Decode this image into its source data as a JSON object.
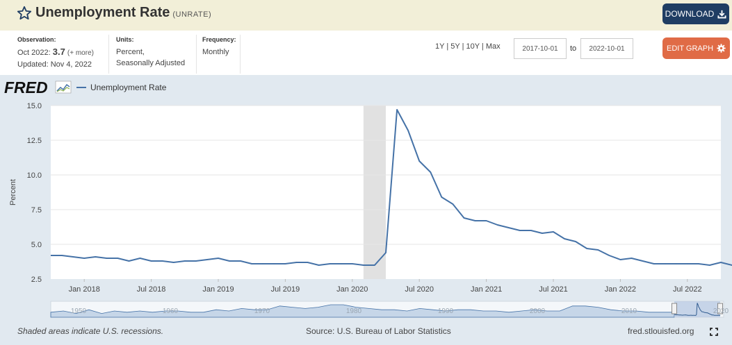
{
  "header": {
    "title": "Unemployment Rate",
    "series_id": "(UNRATE)",
    "download_label": "DOWNLOAD"
  },
  "info": {
    "observation_label": "Observation:",
    "observation_date": "Oct 2022:",
    "observation_value": "3.7",
    "observation_more": "(+ more)",
    "updated": "Updated: Nov 4, 2022",
    "units_label": "Units:",
    "units_line1": "Percent,",
    "units_line2": "Seasonally Adjusted",
    "frequency_label": "Frequency:",
    "frequency_value": "Monthly"
  },
  "range": {
    "options": [
      "1Y",
      "5Y",
      "10Y",
      "Max"
    ],
    "start": "2017-10-01",
    "to_label": "to",
    "end": "2022-10-01"
  },
  "edit_label": "EDIT GRAPH",
  "logo_text": "FRED",
  "legend_label": "Unemployment Rate",
  "footer": {
    "recession_note": "Shaded areas indicate U.S. recessions.",
    "source": "Source: U.S. Bureau of Labor Statistics",
    "url": "fred.stlouisfed.org"
  },
  "colors": {
    "line": "#4572a7",
    "download": "#1f3d63",
    "edit": "#e06b46",
    "titlebar": "#f2efd8",
    "plot_bg": "#e1e9f0"
  },
  "icons": {
    "star": "star-outline-icon",
    "download": "download-icon",
    "gear": "gear-icon",
    "fullscreen": "fullscreen-icon"
  },
  "chart_data": {
    "type": "line",
    "ylabel": "Percent",
    "ylim": [
      2.5,
      15.0
    ],
    "yticks": [
      "2.5",
      "5.0",
      "7.5",
      "10.0",
      "12.5",
      "15.0"
    ],
    "x_tick_labels": [
      "Jan 2018",
      "Jul 2018",
      "Jan 2019",
      "Jul 2019",
      "Jan 2020",
      "Jul 2020",
      "Jan 2021",
      "Jul 2021",
      "Jan 2022",
      "Jul 2022"
    ],
    "x_start": "2017-10",
    "x_end": "2022-10",
    "recession": {
      "start": "2020-02",
      "end": "2020-04"
    },
    "series": [
      {
        "name": "Unemployment Rate",
        "values": [
          4.2,
          4.2,
          4.1,
          4.0,
          4.1,
          4.0,
          4.0,
          3.8,
          4.0,
          3.8,
          3.8,
          3.7,
          3.8,
          3.8,
          3.9,
          4.0,
          3.8,
          3.8,
          3.6,
          3.6,
          3.6,
          3.6,
          3.7,
          3.7,
          3.5,
          3.6,
          3.6,
          3.6,
          3.5,
          3.5,
          4.4,
          14.7,
          13.2,
          11.0,
          10.2,
          8.4,
          7.9,
          6.9,
          6.7,
          6.7,
          6.4,
          6.2,
          6.0,
          6.0,
          5.8,
          5.9,
          5.4,
          5.2,
          4.7,
          4.6,
          4.2,
          3.9,
          4.0,
          3.8,
          3.6,
          3.6,
          3.6,
          3.6,
          3.6,
          3.5,
          3.7,
          3.5,
          3.7
        ]
      }
    ]
  },
  "navigator": {
    "labels": [
      "1950",
      "1960",
      "1970",
      "1980",
      "1990",
      "2000",
      "2010",
      "2020"
    ]
  }
}
